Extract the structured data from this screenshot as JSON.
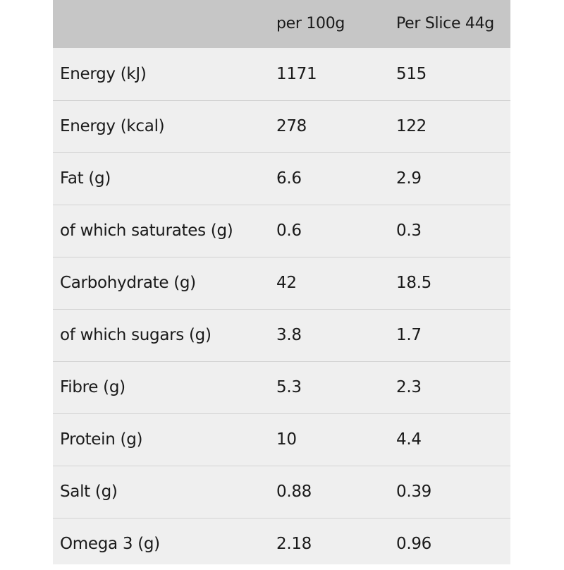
{
  "table": {
    "headers": [
      "",
      "per 100g",
      "Per Slice 44g"
    ],
    "rows": [
      [
        "Energy (kJ)",
        "1171",
        "515"
      ],
      [
        "Energy (kcal)",
        "278",
        "122"
      ],
      [
        "Fat (g)",
        "6.6",
        "2.9"
      ],
      [
        "of which saturates (g)",
        "0.6",
        "0.3"
      ],
      [
        "Carbohydrate (g)",
        "42",
        "18.5"
      ],
      [
        "of which sugars (g)",
        "3.8",
        "1.7"
      ],
      [
        "Fibre (g)",
        "5.3",
        "2.3"
      ],
      [
        "Protein (g)",
        "10",
        "4.4"
      ],
      [
        "Salt (g)",
        "0.88",
        "0.39"
      ],
      [
        "Omega 3 (g)",
        "2.18",
        "0.96"
      ]
    ]
  }
}
